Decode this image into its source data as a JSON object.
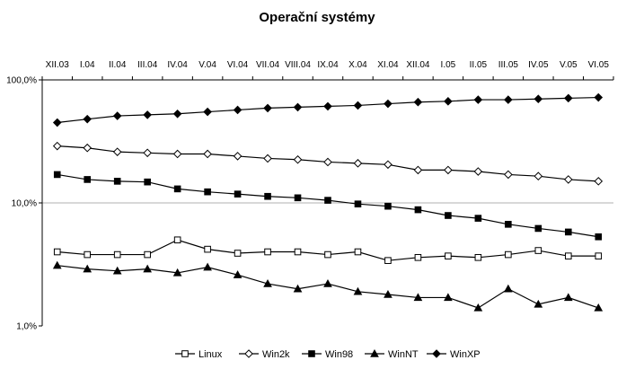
{
  "chart_data": {
    "type": "line",
    "title": "Operační systémy",
    "xlabel": "",
    "ylabel": "",
    "y_scale": "log",
    "ylim": [
      1,
      100
    ],
    "y_ticks": [
      {
        "value": 100,
        "label": "100,0%"
      },
      {
        "value": 10,
        "label": "10,0%"
      },
      {
        "value": 1,
        "label": "1,0%"
      }
    ],
    "grid": true,
    "x_axis_position": "top",
    "legend_position": "bottom",
    "categories": [
      "XII.03",
      "I.04",
      "II.04",
      "III.04",
      "IV.04",
      "V.04",
      "VI.04",
      "VII.04",
      "VIII.04",
      "IX.04",
      "X.04",
      "XI.04",
      "XII.04",
      "I.05",
      "II.05",
      "III.05",
      "IV.05",
      "V.05",
      "VI.05"
    ],
    "series": [
      {
        "name": "Linux",
        "marker": "open-square",
        "values": [
          4.0,
          3.8,
          3.8,
          3.8,
          5.0,
          4.2,
          3.9,
          4.0,
          4.0,
          3.8,
          4.0,
          3.4,
          3.6,
          3.7,
          3.6,
          3.8,
          4.1,
          3.7,
          3.7
        ]
      },
      {
        "name": "Win2k",
        "marker": "open-diamond",
        "values": [
          29,
          28,
          26,
          25.5,
          25,
          25,
          24,
          23,
          22.5,
          21.5,
          21,
          20.5,
          18.5,
          18.5,
          18,
          17,
          16.5,
          15.5,
          15
        ]
      },
      {
        "name": "Win98",
        "marker": "filled-square",
        "values": [
          17,
          15.5,
          15,
          14.8,
          13,
          12.3,
          11.8,
          11.3,
          11,
          10.5,
          9.8,
          9.4,
          8.8,
          7.9,
          7.5,
          6.7,
          6.2,
          5.8,
          5.3
        ]
      },
      {
        "name": "WinNT",
        "marker": "filled-triangle",
        "values": [
          3.1,
          2.9,
          2.8,
          2.9,
          2.7,
          3.0,
          2.6,
          2.2,
          2.0,
          2.2,
          1.9,
          1.8,
          1.7,
          1.7,
          1.4,
          2.0,
          1.5,
          1.7,
          1.4
        ]
      },
      {
        "name": "WinXP",
        "marker": "filled-diamond",
        "values": [
          45,
          48,
          51,
          52,
          53,
          55,
          57,
          59,
          60,
          61,
          62,
          64,
          66,
          67,
          69,
          69,
          70,
          71,
          72
        ]
      }
    ]
  }
}
